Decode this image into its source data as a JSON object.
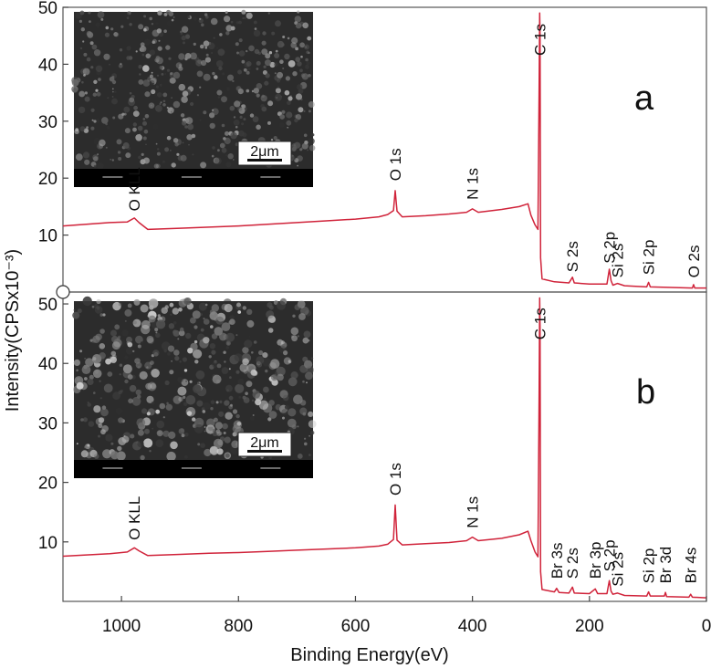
{
  "chart_data": {
    "type": "line",
    "xlabel": "Binding Energy(eV)",
    "ylabel": "Intensity(CPSx10⁻³)",
    "x_ticks": [
      1000,
      800,
      600,
      400,
      200,
      0
    ],
    "xlim": [
      1100,
      0
    ],
    "panels": [
      {
        "label": "a",
        "ylim": [
          0,
          50
        ],
        "y_ticks": [
          10,
          20,
          30,
          40,
          50
        ],
        "scale_bar": "2μm",
        "series": [
          {
            "color": "#d0233a",
            "points": [
              [
                1100,
                11.6
              ],
              [
                1060,
                11.9
              ],
              [
                1020,
                12.2
              ],
              [
                990,
                12.3
              ],
              [
                978,
                13.0
              ],
              [
                970,
                12.2
              ],
              [
                955,
                11.0
              ],
              [
                900,
                11.2
              ],
              [
                850,
                11.4
              ],
              [
                800,
                11.6
              ],
              [
                750,
                11.9
              ],
              [
                700,
                12.2
              ],
              [
                650,
                12.5
              ],
              [
                600,
                12.8
              ],
              [
                560,
                13.2
              ],
              [
                545,
                13.6
              ],
              [
                535,
                14.3
              ],
              [
                532,
                17.8
              ],
              [
                529,
                14.2
              ],
              [
                520,
                13.2
              ],
              [
                480,
                13.4
              ],
              [
                440,
                13.7
              ],
              [
                410,
                14.0
              ],
              [
                400,
                14.6
              ],
              [
                390,
                14.0
              ],
              [
                350,
                14.5
              ],
              [
                320,
                15.0
              ],
              [
                305,
                15.5
              ],
              [
                300,
                13.5
              ],
              [
                293,
                11.8
              ],
              [
                288,
                11.0
              ],
              [
                286,
                36.0
              ],
              [
                285,
                49.0
              ],
              [
                284.5,
                45.0
              ],
              [
                283.5,
                6.0
              ],
              [
                281,
                2.3
              ],
              [
                260,
                1.8
              ],
              [
                235,
                1.6
              ],
              [
                229,
                2.6
              ],
              [
                226,
                1.6
              ],
              [
                200,
                1.4
              ],
              [
                170,
                1.4
              ],
              [
                166,
                4.0
              ],
              [
                163,
                2.0
              ],
              [
                160,
                1.2
              ],
              [
                152,
                1.5
              ],
              [
                140,
                1.1
              ],
              [
                102,
                0.9
              ],
              [
                99,
                1.7
              ],
              [
                96,
                0.9
              ],
              [
                60,
                0.8
              ],
              [
                24,
                0.7
              ],
              [
                22,
                1.3
              ],
              [
                20,
                0.7
              ],
              [
                0,
                0.7
              ]
            ]
          }
        ],
        "annotations": [
          {
            "text": "O KLL",
            "x": 978,
            "y": 14.2
          },
          {
            "text": "O 1s",
            "x": 532,
            "y": 19.5
          },
          {
            "text": "N 1s",
            "x": 400,
            "y": 16.2
          },
          {
            "text": "C 1s",
            "x": 285,
            "y": 41.5
          },
          {
            "text": "S 2s",
            "x": 229,
            "y": 3.5
          },
          {
            "text": "S 2p",
            "x": 166,
            "y": 5.0
          },
          {
            "text": "Si 2s",
            "x": 152,
            "y": 2.5
          },
          {
            "text": "Si 2p",
            "x": 99,
            "y": 3.0
          },
          {
            "text": "O 2s",
            "x": 22,
            "y": 2.5
          }
        ]
      },
      {
        "label": "b",
        "ylim": [
          0,
          52
        ],
        "y_ticks": [
          10,
          20,
          30,
          40,
          50
        ],
        "scale_bar": "2μm",
        "series": [
          {
            "color": "#d0233a",
            "points": [
              [
                1100,
                7.6
              ],
              [
                1060,
                7.8
              ],
              [
                1020,
                8.0
              ],
              [
                990,
                8.3
              ],
              [
                978,
                9.0
              ],
              [
                970,
                8.5
              ],
              [
                955,
                7.7
              ],
              [
                900,
                7.9
              ],
              [
                850,
                8.1
              ],
              [
                800,
                8.2
              ],
              [
                750,
                8.4
              ],
              [
                700,
                8.6
              ],
              [
                650,
                8.8
              ],
              [
                600,
                9.0
              ],
              [
                560,
                9.3
              ],
              [
                545,
                9.6
              ],
              [
                535,
                10.4
              ],
              [
                532,
                16.2
              ],
              [
                529,
                10.3
              ],
              [
                520,
                9.5
              ],
              [
                480,
                9.7
              ],
              [
                440,
                9.9
              ],
              [
                410,
                10.2
              ],
              [
                400,
                10.8
              ],
              [
                390,
                10.2
              ],
              [
                350,
                10.6
              ],
              [
                320,
                11.2
              ],
              [
                305,
                11.8
              ],
              [
                300,
                10.2
              ],
              [
                293,
                8.3
              ],
              [
                288,
                7.5
              ],
              [
                286,
                35.0
              ],
              [
                285,
                51.0
              ],
              [
                284.5,
                46.0
              ],
              [
                283.5,
                5.0
              ],
              [
                281,
                2.0
              ],
              [
                260,
                1.6
              ],
              [
                256,
                2.2
              ],
              [
                252,
                1.5
              ],
              [
                235,
                1.4
              ],
              [
                229,
                2.4
              ],
              [
                226,
                1.4
              ],
              [
                200,
                1.3
              ],
              [
                190,
                2.1
              ],
              [
                186,
                1.3
              ],
              [
                170,
                1.3
              ],
              [
                166,
                3.5
              ],
              [
                163,
                1.7
              ],
              [
                160,
                1.2
              ],
              [
                152,
                1.4
              ],
              [
                140,
                1.0
              ],
              [
                102,
                0.9
              ],
              [
                99,
                1.6
              ],
              [
                96,
                0.9
              ],
              [
                72,
                0.9
              ],
              [
                70,
                1.5
              ],
              [
                68,
                0.8
              ],
              [
                30,
                0.7
              ],
              [
                27,
                1.2
              ],
              [
                24,
                0.7
              ],
              [
                0,
                0.6
              ]
            ]
          }
        ],
        "annotations": [
          {
            "text": "O KLL",
            "x": 978,
            "y": 10.3
          },
          {
            "text": "O 1s",
            "x": 532,
            "y": 17.8
          },
          {
            "text": "N 1s",
            "x": 400,
            "y": 12.3
          },
          {
            "text": "C 1s",
            "x": 285,
            "y": 44.0
          },
          {
            "text": "Br 3s",
            "x": 256,
            "y": 3.8
          },
          {
            "text": "S 2s",
            "x": 229,
            "y": 3.8
          },
          {
            "text": "Br 3p",
            "x": 190,
            "y": 3.8
          },
          {
            "text": "S 2p",
            "x": 166,
            "y": 5.0
          },
          {
            "text": "Si 2s",
            "x": 152,
            "y": 2.5
          },
          {
            "text": "Si 2p",
            "x": 99,
            "y": 3.0
          },
          {
            "text": "Br 3d",
            "x": 70,
            "y": 3.0
          },
          {
            "text": "Br 4s",
            "x": 27,
            "y": 3.0
          }
        ]
      }
    ]
  }
}
